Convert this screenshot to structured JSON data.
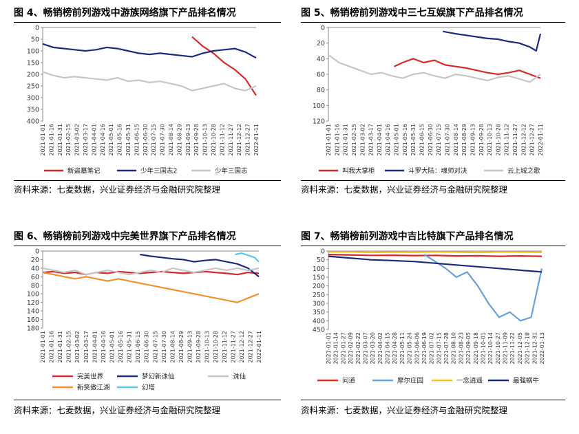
{
  "panels": [
    {
      "title": "图 4、畅销榜前列游戏中游族网络旗下产品排名情况",
      "source": "资料来源：七麦数据，兴业证券经济与金融研究院整理",
      "colors": {
        "primary": "#d42a2a",
        "secondary": "#1b2a7a",
        "tertiary": "#c6c6c6"
      }
    },
    {
      "title": "图 5、畅销榜前列游戏中三七互娱旗下产品排名情况",
      "source": "资料来源：七麦数据，兴业证券经济与金融研究院整理"
    },
    {
      "title": "图 6、畅销榜前列游戏中完美世界旗下产品排名情况",
      "source": "资料来源：七麦数据，兴业证券经济与金融研究院整理"
    },
    {
      "title": "图 7、畅销榜前列游戏中吉比特旗下产品排名情况",
      "source": "资料来源：七麦数据，兴业证券经济与金融研究院整理"
    }
  ],
  "chart_data": [
    {
      "type": "line",
      "ylim": [
        400,
        0
      ],
      "y_ticks": [
        "0",
        "50",
        "100",
        "150",
        "200",
        "250",
        "300",
        "350",
        "400"
      ],
      "x_labels": [
        "2021-01-01",
        "2021-01-16",
        "2021-01-31",
        "2021-02-15",
        "2021-03-02",
        "2021-03-17",
        "2021-04-01",
        "2021-04-16",
        "2021-05-01",
        "2021-05-16",
        "2021-05-31",
        "2021-06-15",
        "2021-06-30",
        "2021-07-15",
        "2021-07-30",
        "2021-08-14",
        "2021-08-29",
        "2021-09-13",
        "2021-09-28",
        "2021-10-13",
        "2021-10-28",
        "2021-11-12",
        "2021-11-27",
        "2021-12-12",
        "2021-12-27",
        "2022-01-11"
      ],
      "series": [
        {
          "name": "新盗墓笔记",
          "color": "#d42a2a",
          "x": [
            0.7,
            0.75,
            0.8,
            0.85,
            0.9,
            0.95,
            1.0
          ],
          "values": [
            40,
            80,
            110,
            150,
            180,
            220,
            290
          ]
        },
        {
          "name": "少年三国志2",
          "color": "#1b2a7a",
          "x": [
            0.0,
            0.05,
            0.1,
            0.15,
            0.2,
            0.25,
            0.3,
            0.35,
            0.4,
            0.45,
            0.5,
            0.55,
            0.6,
            0.65,
            0.7,
            0.75,
            0.8,
            0.85,
            0.9,
            0.95,
            1.0
          ],
          "values": [
            70,
            85,
            90,
            95,
            100,
            95,
            85,
            90,
            100,
            110,
            115,
            110,
            115,
            120,
            125,
            110,
            100,
            95,
            90,
            105,
            130
          ]
        },
        {
          "name": "少年三国志",
          "color": "#c6c6c6",
          "x": [
            0.0,
            0.05,
            0.1,
            0.15,
            0.2,
            0.25,
            0.3,
            0.35,
            0.4,
            0.45,
            0.5,
            0.55,
            0.6,
            0.65,
            0.7,
            0.75,
            0.8,
            0.85,
            0.9,
            0.95,
            1.0
          ],
          "values": [
            190,
            205,
            215,
            210,
            215,
            220,
            225,
            215,
            230,
            225,
            235,
            230,
            240,
            250,
            270,
            260,
            250,
            240,
            260,
            270,
            250
          ]
        }
      ]
    },
    {
      "type": "line",
      "ylim": [
        120,
        0
      ],
      "y_ticks": [
        "0",
        "20",
        "40",
        "60",
        "80",
        "100",
        "120"
      ],
      "x_labels": [
        "2021-01-01",
        "2021-01-16",
        "2021-01-31",
        "2021-02-15",
        "2021-03-02",
        "2021-03-17",
        "2021-04-01",
        "2021-04-16",
        "2021-05-01",
        "2021-05-16",
        "2021-05-31",
        "2021-06-15",
        "2021-06-30",
        "2021-07-15",
        "2021-07-30",
        "2021-08-14",
        "2021-08-29",
        "2021-09-13",
        "2021-09-28",
        "2021-10-13",
        "2021-10-28",
        "2021-11-12",
        "2021-11-27",
        "2021-12-12",
        "2021-12-27",
        "2022-01-11"
      ],
      "series": [
        {
          "name": "叫我大掌柜",
          "color": "#d42a2a",
          "x": [
            0.31,
            0.35,
            0.4,
            0.45,
            0.5,
            0.55,
            0.6,
            0.65,
            0.7,
            0.75,
            0.8,
            0.85,
            0.9,
            0.95,
            1.0
          ],
          "values": [
            50,
            45,
            40,
            45,
            42,
            48,
            50,
            52,
            55,
            58,
            60,
            58,
            55,
            60,
            65
          ]
        },
        {
          "name": "斗罗大陆：魂师对决",
          "color": "#1b2a7a",
          "x": [
            0.54,
            0.6,
            0.65,
            0.7,
            0.75,
            0.8,
            0.85,
            0.9,
            0.95,
            0.98,
            1.0
          ],
          "values": [
            5,
            8,
            10,
            12,
            14,
            15,
            18,
            20,
            25,
            30,
            8
          ]
        },
        {
          "name": "云上城之歌",
          "color": "#c6c6c6",
          "x": [
            0.0,
            0.05,
            0.1,
            0.15,
            0.2,
            0.25,
            0.3,
            0.35,
            0.4,
            0.45,
            0.5,
            0.55,
            0.6,
            0.65,
            0.7,
            0.75,
            0.8,
            0.85,
            0.9,
            0.95,
            1.0
          ],
          "values": [
            35,
            45,
            50,
            55,
            60,
            58,
            62,
            65,
            60,
            58,
            62,
            65,
            60,
            62,
            65,
            68,
            64,
            62,
            66,
            70,
            60
          ]
        }
      ]
    },
    {
      "type": "line",
      "ylim": [
        180,
        0
      ],
      "y_ticks": [
        "0",
        "20",
        "40",
        "60",
        "80",
        "100",
        "120",
        "140",
        "160",
        "180"
      ],
      "x_labels": [
        "2021-01-01",
        "2021-01-16",
        "2021-01-31",
        "2021-02-15",
        "2021-03-02",
        "2021-03-17",
        "2021-04-01",
        "2021-04-16",
        "2021-05-01",
        "2021-05-16",
        "2021-05-31",
        "2021-06-15",
        "2021-06-30",
        "2021-07-15",
        "2021-07-30",
        "2021-08-14",
        "2021-08-29",
        "2021-09-13",
        "2021-09-28",
        "2021-10-13",
        "2021-10-28",
        "2021-11-12",
        "2021-11-27",
        "2021-12-12",
        "2021-12-27",
        "2022-01-11"
      ],
      "series": [
        {
          "name": "完美世界",
          "color": "#d42a2a",
          "x": [
            0.0,
            0.05,
            0.1,
            0.15,
            0.2,
            0.25,
            0.3,
            0.35,
            0.4,
            0.45,
            0.5,
            0.55,
            0.6,
            0.65,
            0.7,
            0.75,
            0.8,
            0.85,
            0.9,
            0.95,
            1.0
          ],
          "values": [
            50,
            48,
            52,
            50,
            55,
            50,
            52,
            48,
            50,
            52,
            50,
            48,
            50,
            52,
            50,
            48,
            50,
            52,
            55,
            50,
            52
          ]
        },
        {
          "name": "梦幻新诛仙",
          "color": "#1b2a7a",
          "x": [
            0.45,
            0.5,
            0.55,
            0.6,
            0.65,
            0.7,
            0.75,
            0.8,
            0.85,
            0.9,
            0.95,
            1.0
          ],
          "values": [
            8,
            12,
            15,
            18,
            20,
            25,
            22,
            20,
            25,
            30,
            40,
            60
          ]
        },
        {
          "name": "诛仙",
          "color": "#c6c6c6",
          "x": [
            0.0,
            0.05,
            0.1,
            0.15,
            0.2,
            0.25,
            0.3,
            0.35,
            0.4,
            0.45,
            0.5,
            0.55,
            0.6,
            0.65,
            0.7,
            0.75,
            0.8,
            0.85,
            0.9,
            0.95,
            1.0
          ],
          "values": [
            40,
            45,
            50,
            45,
            55,
            50,
            45,
            50,
            55,
            50,
            45,
            50,
            40,
            45,
            50,
            45,
            40,
            45,
            40,
            45,
            40
          ]
        },
        {
          "name": "新笑傲江湖",
          "color": "#f09030",
          "x": [
            0.0,
            0.05,
            0.1,
            0.15,
            0.2,
            0.25,
            0.3,
            0.35,
            0.4,
            0.45,
            0.5,
            0.55,
            0.6,
            0.65,
            0.7,
            0.75,
            0.8,
            0.85,
            0.9,
            0.95,
            1.0
          ],
          "values": [
            50,
            55,
            60,
            65,
            60,
            65,
            70,
            65,
            70,
            75,
            80,
            85,
            90,
            95,
            100,
            105,
            110,
            115,
            120,
            110,
            100
          ]
        },
        {
          "name": "幻塔",
          "color": "#5bc8e8",
          "x": [
            0.89,
            0.92,
            0.95,
            0.98,
            1.0
          ],
          "values": [
            8,
            5,
            10,
            15,
            25
          ]
        }
      ]
    },
    {
      "type": "line",
      "ylim": [
        450,
        0
      ],
      "y_ticks": [
        "0",
        "50",
        "100",
        "150",
        "200",
        "250",
        "300",
        "350",
        "400",
        "450"
      ],
      "x_labels": [
        "2021-01-01",
        "2021-01-14",
        "2021-01-27",
        "2021-02-09",
        "2021-02-22",
        "2021-03-07",
        "2021-03-20",
        "2021-04-02",
        "2021-04-15",
        "2021-04-28",
        "2021-05-11",
        "2021-05-24",
        "2021-06-06",
        "2021-06-19",
        "2021-07-02",
        "2021-07-15",
        "2021-07-28",
        "2021-08-10",
        "2021-08-23",
        "2021-09-05",
        "2021-09-18",
        "2021-10-01",
        "2021-10-14",
        "2021-10-27",
        "2021-11-09",
        "2021-11-22",
        "2021-12-05",
        "2021-12-18",
        "2021-12-31",
        "2022-01-13"
      ],
      "series": [
        {
          "name": "问道",
          "color": "#d42a2a",
          "x": [
            0.0,
            0.1,
            0.2,
            0.3,
            0.4,
            0.5,
            0.6,
            0.7,
            0.8,
            0.9,
            1.0
          ],
          "values": [
            20,
            22,
            25,
            24,
            26,
            25,
            28,
            27,
            30,
            28,
            30
          ]
        },
        {
          "name": "摩尔庄园",
          "color": "#6a9fd4",
          "x": [
            0.45,
            0.5,
            0.55,
            0.6,
            0.65,
            0.7,
            0.75,
            0.8,
            0.85,
            0.9,
            0.95,
            1.0
          ],
          "values": [
            20,
            60,
            100,
            150,
            120,
            200,
            300,
            380,
            350,
            400,
            380,
            100
          ]
        },
        {
          "name": "一念逍遥",
          "color": "#f2c21a",
          "x": [
            0.0,
            0.1,
            0.2,
            0.3,
            0.4,
            0.5,
            0.6,
            0.7,
            0.8,
            0.9,
            1.0
          ],
          "values": [
            5,
            5,
            8,
            6,
            7,
            5,
            6,
            8,
            5,
            6,
            7
          ]
        },
        {
          "name": "最强蜗牛",
          "color": "#1b2a7a",
          "x": [
            0.0,
            0.1,
            0.2,
            0.3,
            0.4,
            0.5,
            0.6,
            0.7,
            0.8,
            0.9,
            1.0
          ],
          "values": [
            30,
            40,
            50,
            55,
            60,
            70,
            80,
            90,
            100,
            110,
            120
          ]
        }
      ]
    }
  ]
}
